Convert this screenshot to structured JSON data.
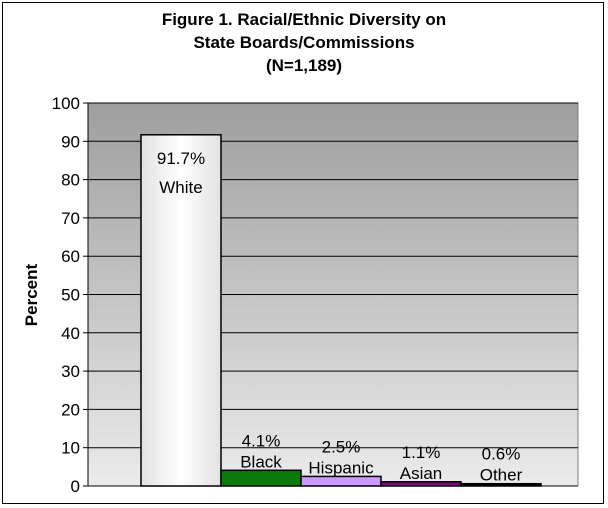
{
  "chart_data": {
    "type": "bar",
    "title_lines": [
      "Figure 1. Racial/Ethnic Diversity on",
      "State Boards/Commissions",
      "(N=1,189)"
    ],
    "xlabel": "",
    "ylabel": "Percent",
    "ylim": [
      0,
      100
    ],
    "yticks": [
      "0",
      "10",
      "20",
      "30",
      "40",
      "50",
      "60",
      "70",
      "80",
      "90",
      "100"
    ],
    "grid": true,
    "categories": [
      "White",
      "Black",
      "Hispanic",
      "Asian",
      "Other"
    ],
    "values": [
      91.7,
      4.1,
      2.5,
      1.1,
      0.6
    ],
    "value_labels": [
      "91.7%",
      "4.1%",
      "2.5%",
      "1.1%",
      "0.6%"
    ],
    "bar_colors": [
      "#ffffff",
      "#0a7a0a",
      "#cc99ff",
      "#7a0a7a",
      "#000000"
    ],
    "plot_background": "#c0c0c0"
  }
}
